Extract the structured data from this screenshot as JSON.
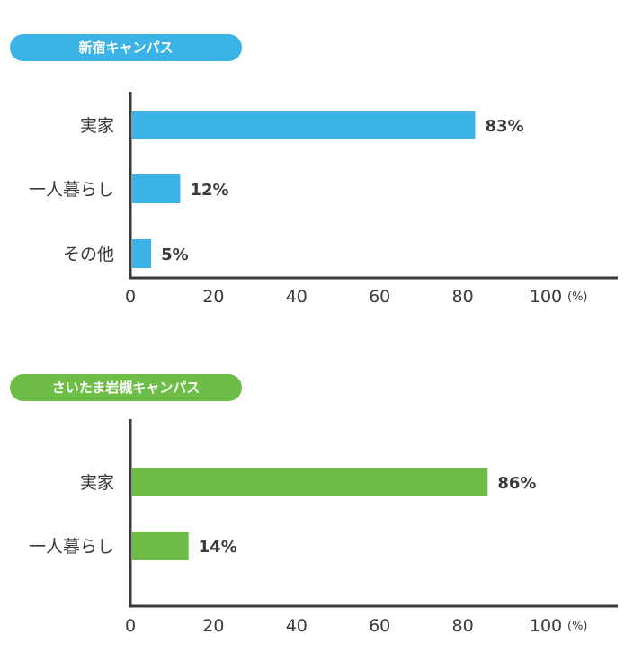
{
  "chart_data": [
    {
      "type": "bar",
      "orientation": "horizontal",
      "title": "新宿キャンパス",
      "categories": [
        "実家",
        "一人暮らし",
        "その他"
      ],
      "values": [
        83,
        12,
        5
      ],
      "value_labels": [
        "83%",
        "12%",
        "5%"
      ],
      "xlim": [
        0,
        100
      ],
      "x_ticks": [
        "0",
        "20",
        "40",
        "60",
        "80",
        "100"
      ],
      "unit": "(%)",
      "color": "#3bb3e6"
    },
    {
      "type": "bar",
      "orientation": "horizontal",
      "title": "さいたま岩槻キャンパス",
      "categories": [
        "実家",
        "一人暮らし"
      ],
      "values": [
        86,
        14
      ],
      "value_labels": [
        "86%",
        "14%"
      ],
      "xlim": [
        0,
        100
      ],
      "x_ticks": [
        "0",
        "20",
        "40",
        "60",
        "80",
        "100"
      ],
      "unit": "(%)",
      "color": "#6dbd46"
    }
  ]
}
